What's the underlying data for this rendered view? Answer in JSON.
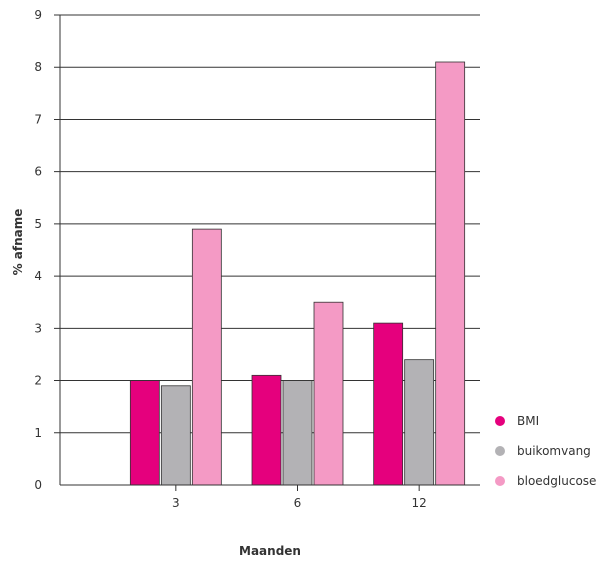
{
  "chart_data": {
    "type": "bar",
    "categories": [
      "3",
      "6",
      "12"
    ],
    "series": [
      {
        "name": "BMI",
        "values": [
          2.0,
          2.1,
          3.1
        ],
        "color": "#e5007d"
      },
      {
        "name": "buikomvang",
        "values": [
          1.9,
          2.0,
          2.4
        ],
        "color": "#b3b2b5"
      },
      {
        "name": "bloedglucose",
        "values": [
          4.9,
          3.5,
          8.1
        ],
        "color": "#f49ac5"
      }
    ],
    "xlabel": "Maanden",
    "ylabel": "% afname",
    "ylim": [
      0,
      9
    ],
    "yticks": [
      "0",
      "1",
      "2",
      "3",
      "4",
      "5",
      "6",
      "7",
      "8",
      "9"
    ],
    "grid": true,
    "legend": "bottom-right"
  }
}
